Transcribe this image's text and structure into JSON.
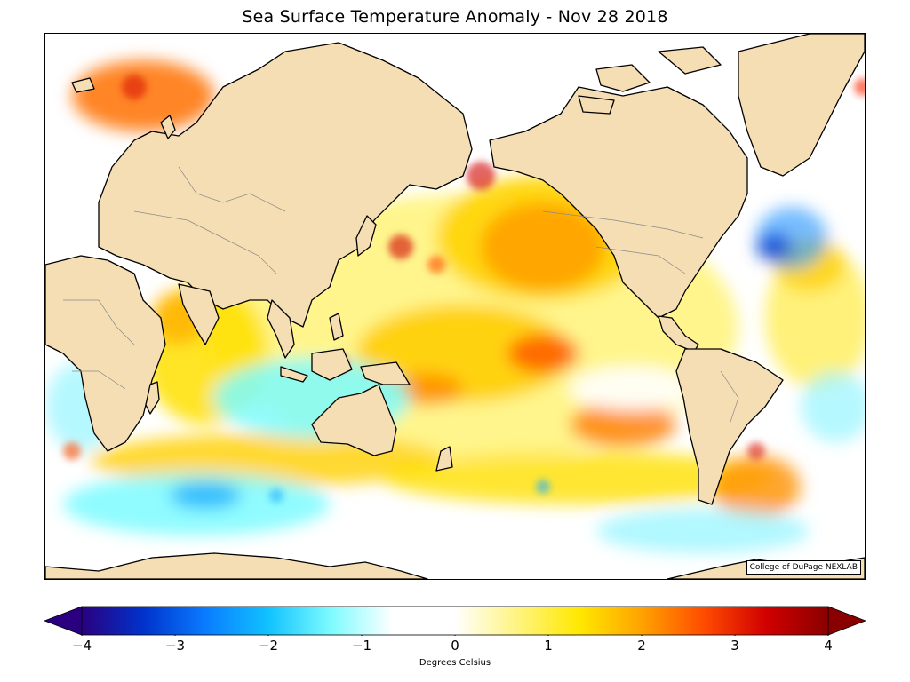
{
  "title": "Sea Surface Temperature Anomaly - Nov 28 2018",
  "credit": "College of DuPage NEXLAB",
  "colorbar": {
    "label": "Degrees Celsius",
    "min": -4,
    "max": 4,
    "ticks": [
      {
        "value": -4,
        "label": "−4"
      },
      {
        "value": -3,
        "label": "−3"
      },
      {
        "value": -2,
        "label": "−2"
      },
      {
        "value": -1,
        "label": "−1"
      },
      {
        "value": 0,
        "label": "0"
      },
      {
        "value": 1,
        "label": "1"
      },
      {
        "value": 2,
        "label": "2"
      },
      {
        "value": 3,
        "label": "3"
      },
      {
        "value": 4,
        "label": "4"
      }
    ],
    "colors": [
      "#2a0080",
      "#0033cc",
      "#0a7dff",
      "#11c2ff",
      "#7dfbff",
      "#ffffff",
      "#ffffff",
      "#fff480",
      "#ffe800",
      "#ffa200",
      "#ff4c00",
      "#d10000",
      "#8a0000"
    ],
    "extend": "both"
  },
  "map": {
    "projection": "Mercator, Pacific-centered",
    "land_color": "#f5deb3",
    "ocean_neutral": "#ffffff"
  }
}
